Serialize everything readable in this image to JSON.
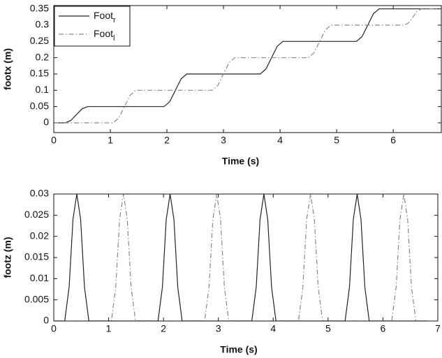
{
  "chart_data": [
    {
      "type": "line",
      "xlabel": "Time (s)",
      "ylabel": "footx (m)",
      "xlim": [
        0,
        6.85
      ],
      "ylim": [
        -0.03,
        0.36
      ],
      "xticks": [
        0,
        1,
        2,
        3,
        4,
        5,
        6
      ],
      "yticks": [
        0,
        0.05,
        0.1,
        0.15,
        0.2,
        0.25,
        0.3,
        0.35
      ],
      "legend": "upper left",
      "series": [
        {
          "name": "Foot_r",
          "color": "#222222",
          "dash": "solid",
          "x": [
            0,
            0.2,
            0.3,
            0.4,
            0.5,
            0.6,
            1.95,
            2.05,
            2.15,
            2.25,
            2.35,
            3.65,
            3.75,
            3.85,
            3.95,
            4.05,
            5.35,
            5.45,
            5.55,
            5.65,
            5.75,
            6.8
          ],
          "values": [
            0,
            0,
            0.007,
            0.025,
            0.043,
            0.05,
            0.05,
            0.065,
            0.1,
            0.135,
            0.15,
            0.15,
            0.165,
            0.2,
            0.235,
            0.25,
            0.25,
            0.265,
            0.3,
            0.335,
            0.35,
            0.35
          ]
        },
        {
          "name": "Foot_l",
          "color": "#888888",
          "dash": "dashdot",
          "x": [
            0,
            1.05,
            1.15,
            1.25,
            1.35,
            1.45,
            2.8,
            2.9,
            3.0,
            3.1,
            3.2,
            4.5,
            4.6,
            4.7,
            4.8,
            4.9,
            6.2,
            6.27,
            6.35,
            6.42,
            6.5,
            6.8
          ],
          "values": [
            0,
            0,
            0.015,
            0.05,
            0.085,
            0.1,
            0.1,
            0.115,
            0.15,
            0.185,
            0.2,
            0.2,
            0.215,
            0.25,
            0.285,
            0.3,
            0.3,
            0.307,
            0.325,
            0.343,
            0.35,
            0.35
          ]
        }
      ]
    },
    {
      "type": "line",
      "xlabel": "Time (s)",
      "ylabel": "footz (m)",
      "xlim": [
        0,
        7
      ],
      "ylim": [
        0,
        0.03
      ],
      "xticks": [
        0,
        1,
        2,
        3,
        4,
        5,
        6,
        7
      ],
      "yticks": [
        0,
        0.005,
        0.01,
        0.015,
        0.02,
        0.025,
        0.03
      ],
      "series": [
        {
          "name": "Foot_r",
          "color": "#222222",
          "dash": "solid",
          "x": [
            0,
            0.2,
            0.28,
            0.35,
            0.42,
            0.49,
            0.56,
            0.64,
            1.9,
            1.98,
            2.05,
            2.12,
            2.19,
            2.26,
            2.34,
            3.61,
            3.69,
            3.76,
            3.83,
            3.9,
            3.97,
            4.05,
            5.31,
            5.39,
            5.46,
            5.53,
            5.6,
            5.67,
            5.75,
            6.8
          ],
          "values": [
            0,
            0,
            0.008,
            0.024,
            0.03,
            0.024,
            0.008,
            0,
            0,
            0.008,
            0.024,
            0.03,
            0.024,
            0.008,
            0,
            0,
            0.008,
            0.024,
            0.03,
            0.024,
            0.008,
            0,
            0,
            0.008,
            0.024,
            0.03,
            0.024,
            0.008,
            0,
            0
          ]
        },
        {
          "name": "Foot_l",
          "color": "#888888",
          "dash": "dashdot",
          "x": [
            0,
            1.05,
            1.13,
            1.2,
            1.27,
            1.34,
            1.41,
            1.49,
            2.75,
            2.83,
            2.9,
            2.97,
            3.04,
            3.11,
            3.19,
            4.46,
            4.54,
            4.61,
            4.68,
            4.75,
            4.82,
            4.9,
            6.16,
            6.24,
            6.31,
            6.38,
            6.45,
            6.52,
            6.6,
            6.8
          ],
          "values": [
            0,
            0,
            0.008,
            0.024,
            0.03,
            0.024,
            0.008,
            0,
            0,
            0.008,
            0.024,
            0.03,
            0.024,
            0.008,
            0,
            0,
            0.008,
            0.024,
            0.03,
            0.024,
            0.008,
            0,
            0,
            0.008,
            0.024,
            0.03,
            0.024,
            0.008,
            0,
            0
          ]
        }
      ]
    }
  ]
}
